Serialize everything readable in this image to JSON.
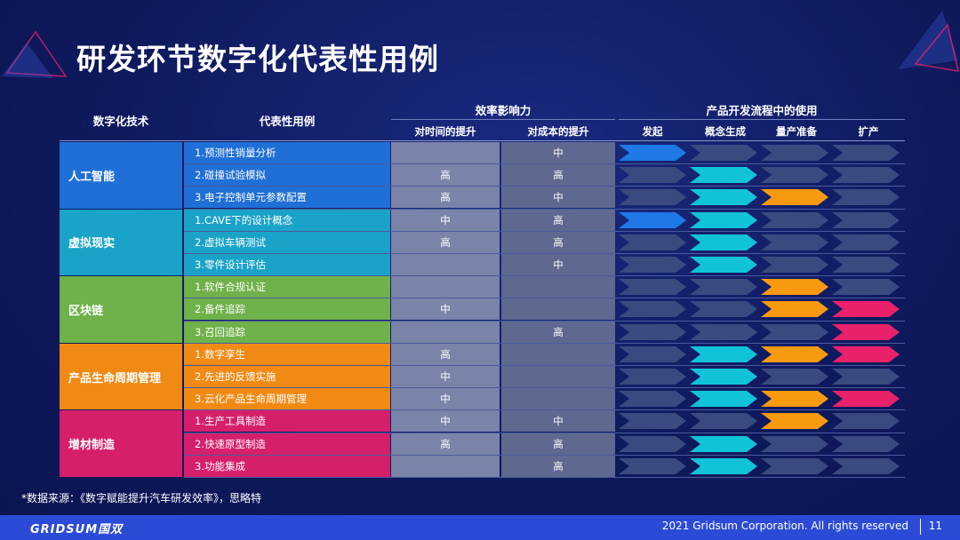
{
  "title": "研发环节数字化代表性用例",
  "headers": {
    "tech": "数字化技术",
    "use_case": "代表性用例",
    "effect": "效率影响力",
    "effect_time": "对时间的提升",
    "effect_cost": "对成本的提升",
    "process": "产品开发流程中的使用",
    "stages": [
      "发起",
      "概念生成",
      "量产准备",
      "扩产"
    ]
  },
  "colors": {
    "ai": "#1f6fd6",
    "vr": "#1aa3c8",
    "blockchain": "#6fb14a",
    "plm": "#f08a14",
    "am": "#d61f6b",
    "arrow_initiate": "#1e78e6",
    "arrow_concept": "#11c3d8",
    "arrow_prep": "#f79a10",
    "arrow_scale": "#e8216a",
    "arrow_empty": "#3a4a80"
  },
  "categories": [
    {
      "name": "人工智能",
      "color_key": "ai",
      "rows": [
        {
          "label": "1.预测性销量分析",
          "time": "",
          "cost": "中",
          "stages": [
            1,
            0,
            0,
            0
          ]
        },
        {
          "label": "2.碰撞试验模拟",
          "time": "高",
          "cost": "高",
          "stages": [
            0,
            1,
            0,
            0
          ]
        },
        {
          "label": "3.电子控制单元参数配置",
          "time": "高",
          "cost": "中",
          "stages": [
            0,
            1,
            1,
            0
          ]
        }
      ]
    },
    {
      "name": "虚拟现实",
      "color_key": "vr",
      "rows": [
        {
          "label": "1.CAVE下的设计概念",
          "time": "中",
          "cost": "高",
          "stages": [
            1,
            1,
            0,
            0
          ]
        },
        {
          "label": "2.虚拟车辆测试",
          "time": "高",
          "cost": "高",
          "stages": [
            0,
            1,
            0,
            0
          ]
        },
        {
          "label": "3.零件设计评估",
          "time": "",
          "cost": "中",
          "stages": [
            0,
            1,
            0,
            0
          ]
        }
      ]
    },
    {
      "name": "区块链",
      "color_key": "blockchain",
      "rows": [
        {
          "label": "1.软件合规认证",
          "time": "",
          "cost": "",
          "stages": [
            0,
            0,
            1,
            0
          ]
        },
        {
          "label": "2.备件追踪",
          "time": "中",
          "cost": "",
          "stages": [
            0,
            0,
            1,
            1
          ]
        },
        {
          "label": "3.召回追踪",
          "time": "",
          "cost": "高",
          "stages": [
            0,
            0,
            0,
            1
          ]
        }
      ]
    },
    {
      "name": "产品生命周期管理",
      "color_key": "plm",
      "rows": [
        {
          "label": "1.数字孪生",
          "time": "高",
          "cost": "",
          "stages": [
            0,
            1,
            1,
            1
          ]
        },
        {
          "label": "2.先进的反馈实施",
          "time": "中",
          "cost": "",
          "stages": [
            0,
            1,
            0,
            0
          ]
        },
        {
          "label": "3.云化产品生命周期管理",
          "time": "中",
          "cost": "",
          "stages": [
            0,
            1,
            1,
            1
          ]
        }
      ]
    },
    {
      "name": "增材制造",
      "color_key": "am",
      "rows": [
        {
          "label": "1.生产工具制造",
          "time": "中",
          "cost": "中",
          "stages": [
            0,
            0,
            1,
            0
          ]
        },
        {
          "label": "2.快速原型制造",
          "time": "高",
          "cost": "高",
          "stages": [
            0,
            1,
            0,
            0
          ]
        },
        {
          "label": "3.功能集成",
          "time": "",
          "cost": "高",
          "stages": [
            0,
            1,
            0,
            0
          ]
        }
      ]
    }
  ],
  "source": "*数据来源：《数字赋能提升汽车研发效率》，思略特",
  "footer": {
    "brand": "GRIDSUM国双",
    "copyright": "2021 Gridsum Corporation. All rights reserved",
    "page": "11"
  }
}
